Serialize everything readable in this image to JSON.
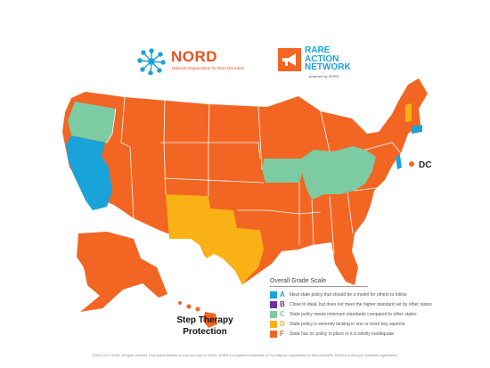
{
  "logos": {
    "nord": {
      "name": "NORD",
      "tagline": "National Organization for Rare Disorders"
    },
    "ran": {
      "line1": "RARE",
      "line2": "ACTION",
      "line3": "NETWORK",
      "powered_by": "powered by NORD"
    }
  },
  "map": {
    "dc_label": "DC",
    "title_line1": "Step Therapy",
    "title_line2": "Protection",
    "grade_colors": {
      "A": "#1aa3d9",
      "B": "#7030a0",
      "C": "#7ccba2",
      "D": "#f9b115",
      "F": "#f26522"
    },
    "state_grades": {
      "A": [
        "California",
        "Nevada",
        "Connecticut",
        "Delaware"
      ],
      "B": [],
      "C": [
        "Oregon",
        "Illinois",
        "Indiana",
        "Ohio",
        "Kentucky",
        "West Virginia",
        "Iowa"
      ],
      "D": [
        "New Mexico",
        "Texas",
        "Vermont"
      ],
      "F": [
        "all other states",
        "Alaska",
        "Hawaii",
        "DC"
      ]
    }
  },
  "legend": {
    "title": "Overall Grade Scale",
    "items": [
      {
        "grade": "A",
        "color": "#1aa3d9",
        "description": "Ideal state policy that should be a model for others to follow"
      },
      {
        "grade": "B",
        "color": "#7030a0",
        "description": "Close to ideal, but does not meet the higher standard set by other states"
      },
      {
        "grade": "C",
        "color": "#7ccba2",
        "description": "State policy meets minimum standards compared to other states"
      },
      {
        "grade": "D",
        "color": "#f9b115",
        "description": "State policy is severely lacking in one or more key aspects"
      },
      {
        "grade": "F",
        "color": "#f26522",
        "description": "State has no policy in place or it is wholly inadequate"
      }
    ]
  },
  "footer": "©2015-2017 NORD. All rights reserved.   Rare Action Network is a service mark of NORD. NORD is a registered trademark of The National Organization for Rare Disorders. NORD is a 501(c)(3) charitable organization."
}
